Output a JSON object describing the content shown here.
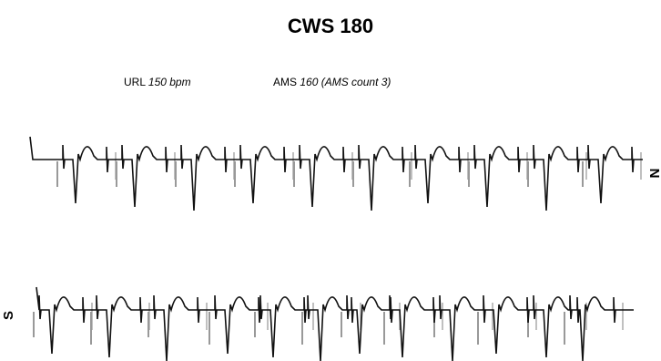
{
  "header": {
    "title": "CWS 180"
  },
  "settings": {
    "url_label": "URL",
    "url_value": "150 bpm",
    "ams_label": "AMS",
    "ams_value": "160 (AMS count 3)"
  },
  "leads": [
    "N",
    "S"
  ]
}
